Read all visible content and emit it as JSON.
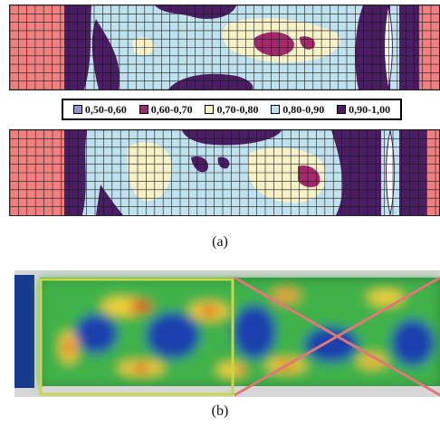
{
  "panel_a": {
    "caption": "(a)",
    "legend": [
      {
        "label": "0,50-0,60",
        "color": "#8f93c9"
      },
      {
        "label": "0,60-0,70",
        "color": "#a32a6a"
      },
      {
        "label": "0,70-0,80",
        "color": "#f7f1c8"
      },
      {
        "label": "0,80-0,90",
        "color": "#bfe2ee"
      },
      {
        "label": "0,90-1,00",
        "color": "#4a1d64"
      }
    ],
    "edge_color": "#f08080"
  },
  "panel_b": {
    "caption": "(b)",
    "frame_color": "#c8d64a",
    "cross_color": "#e07878"
  }
}
